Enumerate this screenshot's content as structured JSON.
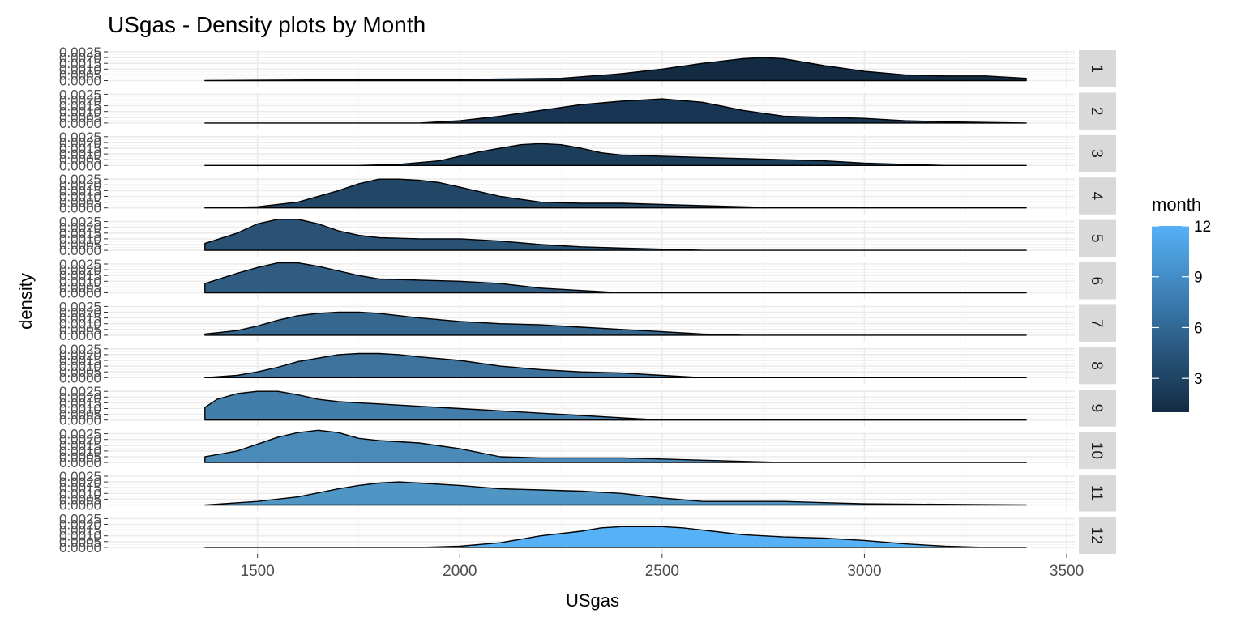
{
  "chart_data": {
    "type": "area",
    "title": "USgas - Density plots by Month",
    "xlabel": "USgas",
    "ylabel": "density",
    "x_range": [
      1370,
      3400
    ],
    "xlim": [
      1130,
      3520
    ],
    "ylim": [
      0,
      0.0025
    ],
    "x_ticks": [
      "1500",
      "2000",
      "2500",
      "3000",
      "3500"
    ],
    "x_tick_values": [
      1500,
      2000,
      2500,
      3000,
      3500
    ],
    "y_ticks": [
      "0.0000",
      "0.0005",
      "0.0010",
      "0.0015",
      "0.0020",
      "0.0025"
    ],
    "y_tick_values": [
      0,
      0.0005,
      0.001,
      0.0015,
      0.002,
      0.0025
    ],
    "facet_by": "month",
    "panels": [
      {
        "label": "1",
        "month": 1,
        "color": "#132B43",
        "x": [
          1370,
          1800,
          2000,
          2250,
          2400,
          2500,
          2600,
          2700,
          2750,
          2800,
          2900,
          3000,
          3100,
          3200,
          3300,
          3400
        ],
        "y": [
          0,
          0.0001,
          0.0001,
          0.0002,
          0.0006,
          0.001,
          0.0015,
          0.0019,
          0.002,
          0.0019,
          0.0013,
          0.0008,
          0.0005,
          0.0004,
          0.0004,
          0.0002
        ]
      },
      {
        "label": "2",
        "month": 2,
        "color": "#173452",
        "x": [
          1370,
          1900,
          2000,
          2100,
          2200,
          2300,
          2400,
          2500,
          2600,
          2700,
          2800,
          2900,
          3000,
          3100,
          3200,
          3400
        ],
        "y": [
          0,
          0,
          0.0002,
          0.0006,
          0.0011,
          0.0016,
          0.0019,
          0.0021,
          0.0018,
          0.0011,
          0.0006,
          0.0005,
          0.0004,
          0.0002,
          0.0001,
          0
        ]
      },
      {
        "label": "3",
        "month": 3,
        "color": "#1D3E5A",
        "x": [
          1370,
          1750,
          1850,
          1950,
          2050,
          2150,
          2200,
          2250,
          2300,
          2350,
          2400,
          2500,
          2600,
          2700,
          2800,
          2900,
          3000,
          3100,
          3200,
          3400
        ],
        "y": [
          0,
          0,
          0.0001,
          0.0004,
          0.0012,
          0.0018,
          0.0019,
          0.0018,
          0.0015,
          0.0011,
          0.0009,
          0.0008,
          0.0007,
          0.0006,
          0.0005,
          0.0004,
          0.0002,
          0.0001,
          0,
          0
        ]
      },
      {
        "label": "4",
        "month": 4,
        "color": "#224766",
        "x": [
          1370,
          1500,
          1600,
          1700,
          1750,
          1800,
          1850,
          1900,
          1950,
          2000,
          2100,
          2200,
          2300,
          2400,
          2500,
          2600,
          2800,
          3000,
          3400
        ],
        "y": [
          0,
          0.0001,
          0.0005,
          0.0015,
          0.0021,
          0.0025,
          0.0025,
          0.0024,
          0.0022,
          0.0018,
          0.001,
          0.0005,
          0.0004,
          0.0004,
          0.0003,
          0.0002,
          0,
          0,
          0
        ]
      },
      {
        "label": "5",
        "month": 5,
        "color": "#2A5275",
        "x": [
          1370,
          1450,
          1500,
          1550,
          1600,
          1650,
          1700,
          1750,
          1800,
          1900,
          2000,
          2100,
          2200,
          2300,
          2400,
          2600,
          2800,
          3400
        ],
        "y": [
          0.0006,
          0.0015,
          0.0023,
          0.0027,
          0.0027,
          0.0023,
          0.0017,
          0.0013,
          0.0011,
          0.001,
          0.001,
          0.0008,
          0.0005,
          0.0003,
          0.0002,
          0,
          0,
          0
        ]
      },
      {
        "label": "6",
        "month": 6,
        "color": "#305C82",
        "x": [
          1370,
          1450,
          1500,
          1550,
          1600,
          1650,
          1700,
          1750,
          1800,
          1900,
          2000,
          2100,
          2200,
          2300,
          2400,
          2600,
          2800,
          3400
        ],
        "y": [
          0.0008,
          0.0017,
          0.0022,
          0.0026,
          0.0026,
          0.0023,
          0.0019,
          0.0015,
          0.0012,
          0.0011,
          0.001,
          0.0008,
          0.0004,
          0.0002,
          0,
          0,
          0,
          0
        ]
      },
      {
        "label": "7",
        "month": 7,
        "color": "#36678F",
        "x": [
          1370,
          1450,
          1500,
          1550,
          1600,
          1650,
          1700,
          1750,
          1800,
          1900,
          2000,
          2100,
          2200,
          2300,
          2400,
          2500,
          2600,
          2700,
          2800,
          3400
        ],
        "y": [
          0.0001,
          0.0004,
          0.0008,
          0.0013,
          0.0017,
          0.0019,
          0.002,
          0.002,
          0.0019,
          0.0015,
          0.0012,
          0.001,
          0.0009,
          0.0007,
          0.0005,
          0.0003,
          0.0001,
          0,
          0,
          0
        ]
      },
      {
        "label": "8",
        "month": 8,
        "color": "#3D729C",
        "x": [
          1370,
          1450,
          1500,
          1550,
          1600,
          1650,
          1700,
          1750,
          1800,
          1850,
          1900,
          2000,
          2100,
          2200,
          2300,
          2400,
          2500,
          2600,
          3400
        ],
        "y": [
          0,
          0.0002,
          0.0005,
          0.0009,
          0.0014,
          0.0017,
          0.002,
          0.0021,
          0.0021,
          0.002,
          0.0018,
          0.0015,
          0.001,
          0.0007,
          0.0005,
          0.0004,
          0.0002,
          0,
          0
        ]
      },
      {
        "label": "9",
        "month": 9,
        "color": "#437EAA",
        "x": [
          1370,
          1400,
          1450,
          1500,
          1550,
          1600,
          1650,
          1700,
          1750,
          1800,
          1900,
          2000,
          2100,
          2200,
          2300,
          2400,
          2500,
          3400
        ],
        "y": [
          0.0011,
          0.0018,
          0.0023,
          0.0025,
          0.0025,
          0.0022,
          0.0018,
          0.0016,
          0.0015,
          0.0014,
          0.0012,
          0.001,
          0.0008,
          0.0006,
          0.0004,
          0.0002,
          0,
          0
        ]
      },
      {
        "label": "10",
        "month": 10,
        "color": "#4A8AB8",
        "x": [
          1370,
          1450,
          1500,
          1550,
          1600,
          1650,
          1700,
          1750,
          1800,
          1850,
          1900,
          2000,
          2100,
          2200,
          2300,
          2400,
          2500,
          2600,
          2800,
          3400
        ],
        "y": [
          0.0005,
          0.001,
          0.0016,
          0.0022,
          0.0026,
          0.0028,
          0.0026,
          0.0021,
          0.0019,
          0.0018,
          0.0017,
          0.0012,
          0.0005,
          0.0004,
          0.0004,
          0.0004,
          0.0003,
          0.0002,
          0,
          0
        ]
      },
      {
        "label": "11",
        "month": 11,
        "color": "#5096C5",
        "x": [
          1370,
          1500,
          1600,
          1700,
          1750,
          1800,
          1850,
          1900,
          2000,
          2100,
          2200,
          2300,
          2400,
          2500,
          2600,
          2700,
          2800,
          2900,
          3000,
          3400
        ],
        "y": [
          0,
          0.0003,
          0.0007,
          0.0014,
          0.0017,
          0.0019,
          0.002,
          0.0019,
          0.0017,
          0.0014,
          0.0013,
          0.0012,
          0.001,
          0.0006,
          0.0003,
          0.0003,
          0.0003,
          0.0002,
          0.0001,
          0
        ]
      },
      {
        "label": "12",
        "month": 12,
        "color": "#56B1F7",
        "x": [
          1370,
          1900,
          2000,
          2100,
          2200,
          2300,
          2350,
          2400,
          2450,
          2500,
          2550,
          2600,
          2700,
          2800,
          2900,
          3000,
          3100,
          3200,
          3300,
          3400
        ],
        "y": [
          0,
          0,
          0.0001,
          0.0004,
          0.001,
          0.0014,
          0.0017,
          0.0018,
          0.0018,
          0.0018,
          0.0017,
          0.0015,
          0.0011,
          0.0009,
          0.0008,
          0.0006,
          0.0003,
          0.0001,
          0,
          0
        ]
      }
    ],
    "legend": {
      "title": "month",
      "placement": "right",
      "ticks": [
        "3",
        "6",
        "9",
        "12"
      ],
      "tick_values": [
        3,
        6,
        9,
        12
      ],
      "range": [
        1,
        12
      ],
      "colors": [
        "#132B43",
        "#56B1F7"
      ]
    },
    "grid": true,
    "panel_background": "#ffffff",
    "grid_color": "#EBEBEB",
    "strip_background": "#D9D9D9"
  }
}
